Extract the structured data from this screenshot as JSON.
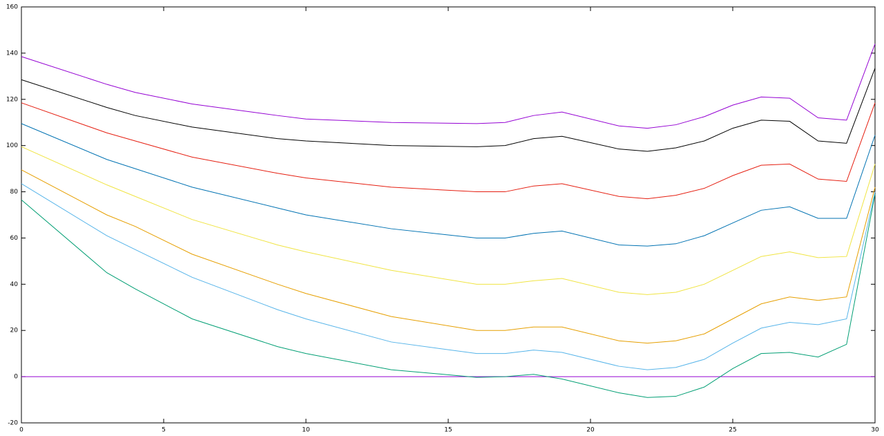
{
  "chart_data": {
    "type": "line",
    "x": [
      0,
      3,
      4,
      6,
      9,
      10,
      13,
      16,
      17,
      18,
      19,
      21,
      22,
      23,
      24,
      25,
      26,
      27,
      28,
      29,
      30
    ],
    "xlim": [
      0,
      30
    ],
    "xticks": [
      0,
      5,
      10,
      15,
      20,
      25,
      30
    ],
    "ylim": [
      -20,
      160
    ],
    "yticks": [
      -20,
      0,
      20,
      40,
      60,
      80,
      100,
      120,
      140,
      160
    ],
    "series": [
      {
        "color": "#9400d3",
        "values": [
          0,
          0,
          0,
          0,
          0,
          0,
          0,
          0,
          0,
          0,
          0,
          0,
          0,
          0,
          0,
          0,
          0,
          0,
          0,
          0,
          0
        ]
      },
      {
        "color": "#009e73",
        "values": [
          76.5,
          45,
          38,
          25,
          13,
          10,
          3,
          -0.3,
          0,
          1,
          -1,
          -7,
          -9,
          -8.5,
          -4.5,
          3.5,
          10,
          10.5,
          8.5,
          14,
          79
        ]
      },
      {
        "color": "#56b4e9",
        "values": [
          83.5,
          61,
          55,
          43,
          29,
          25,
          15,
          10,
          10,
          11.5,
          10.5,
          4.5,
          3,
          4,
          7.5,
          14.5,
          21,
          23.5,
          22.5,
          25,
          80
        ]
      },
      {
        "color": "#e69f00",
        "values": [
          89.5,
          70,
          65,
          53,
          40,
          36,
          26,
          20,
          20,
          21.5,
          21.5,
          15.5,
          14.5,
          15.5,
          18.5,
          25,
          31.5,
          34.5,
          33,
          34.5,
          82
        ]
      },
      {
        "color": "#f0e442",
        "values": [
          99.5,
          83,
          78,
          68,
          57,
          54,
          46,
          40,
          40,
          41.5,
          42.5,
          36.5,
          35.5,
          36.5,
          40,
          46,
          52,
          54,
          51.5,
          52,
          92
        ]
      },
      {
        "color": "#0072b2",
        "values": [
          109.5,
          94,
          90,
          82,
          73,
          70,
          64,
          60,
          60,
          62,
          63,
          57,
          56.5,
          57.5,
          61,
          66.5,
          72,
          73.5,
          68.5,
          68.5,
          104.5
        ]
      },
      {
        "color": "#e51e10",
        "values": [
          118.5,
          105.5,
          102,
          95,
          88,
          86,
          82,
          80,
          80,
          82.5,
          83.5,
          78,
          77,
          78.5,
          81.5,
          87,
          91.5,
          92,
          85.5,
          84.5,
          118.5
        ]
      },
      {
        "color": "#000000",
        "values": [
          128.5,
          116.5,
          113,
          108,
          103,
          102,
          100,
          99.5,
          100,
          103,
          104,
          98.5,
          97.5,
          99,
          102,
          107.5,
          111,
          110.5,
          102,
          101,
          133.5
        ]
      },
      {
        "color": "#9400d3",
        "values": [
          138.5,
          126.5,
          123,
          118,
          113,
          111.5,
          110,
          109.5,
          110,
          113,
          114.5,
          108.5,
          107.5,
          109,
          112.5,
          117.5,
          121,
          120.5,
          112,
          111,
          144
        ]
      }
    ]
  }
}
